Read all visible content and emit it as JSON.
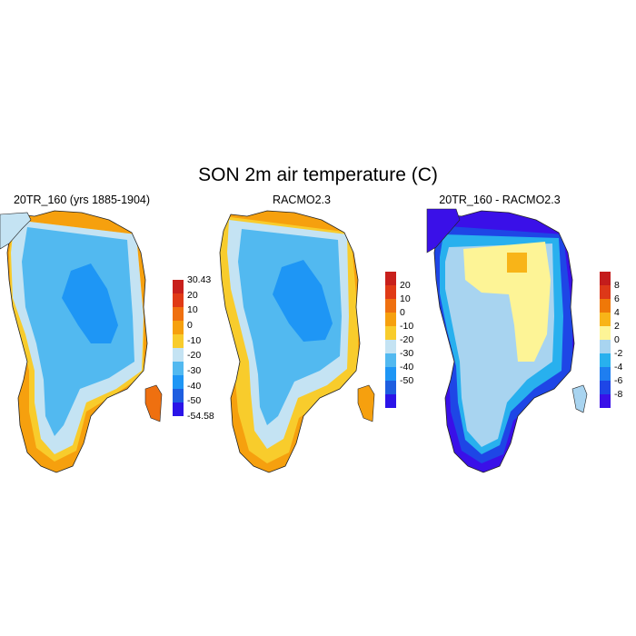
{
  "main_title": "SON 2m air temperature (C)",
  "panels": [
    {
      "title": "20TR_160 (yrs 1885-1904)",
      "colorbar": {
        "colors": [
          "#2b14e8",
          "#1e5ee0",
          "#1e96f5",
          "#52b9f0",
          "#c4e3f3",
          "#f8cc2c",
          "#f6a00e",
          "#ef7010",
          "#e03a16",
          "#c8201c"
        ],
        "labels": [
          "30.43",
          "20",
          "10",
          "0",
          "-10",
          "-20",
          "-30",
          "-40",
          "-50",
          "-54.58"
        ]
      }
    },
    {
      "title": "RACMO2.3",
      "colorbar": {
        "colors": [
          "#2b14e8",
          "#1e5ee0",
          "#1e96f5",
          "#52b9f0",
          "#c4e3f3",
          "#f8cc2c",
          "#f6a00e",
          "#ef7010",
          "#e03a16",
          "#c8201c"
        ],
        "labels": [
          "20",
          "10",
          "0",
          "-10",
          "-20",
          "-30",
          "-40",
          "-50"
        ]
      }
    },
    {
      "title": "20TR_160 - RACMO2.3",
      "colorbar": {
        "colors": [
          "#3a10e8",
          "#1e46e6",
          "#1e7ef0",
          "#28b0ee",
          "#a8d4f0",
          "#fdf496",
          "#f8b418",
          "#ef7808",
          "#dd3818",
          "#c41c1c"
        ],
        "labels": [
          "8",
          "6",
          "4",
          "2",
          "0",
          "-2",
          "-4",
          "-6",
          "-8"
        ]
      }
    }
  ],
  "legend_units_note": ""
}
